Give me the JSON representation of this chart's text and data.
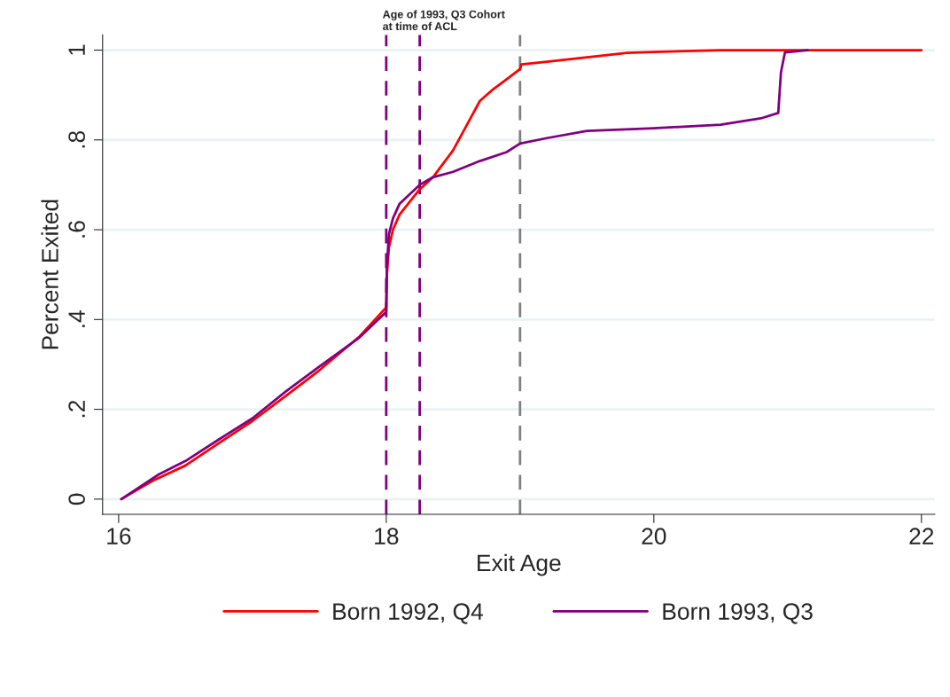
{
  "chart_data": {
    "type": "line",
    "xlabel": "Exit Age",
    "ylabel": "Percent Exited",
    "xlim": [
      15.88,
      22.1
    ],
    "ylim": [
      -0.034,
      1.034
    ],
    "xticks": [
      16,
      18,
      20,
      22
    ],
    "yticks": [
      0,
      {
        "value": 0.2,
        "label": ".2"
      },
      {
        "value": 0.4,
        "label": ".4"
      },
      {
        "value": 0.6,
        "label": ".6"
      },
      {
        "value": 0.8,
        "label": ".8"
      },
      1
    ],
    "grid": "y",
    "legend": "bottom",
    "marker": "none",
    "line_style": "solid",
    "series": [
      {
        "name": "Born 1992, Q4",
        "color": "#ff0000",
        "x": [
          16.02,
          16.25,
          16.5,
          16.75,
          17,
          17.25,
          17.5,
          17.8,
          18,
          18.005,
          18.02,
          18.05,
          18.1,
          18.25,
          18.35,
          18.4,
          18.5,
          18.6,
          18.7,
          18.8,
          18.9,
          19.0,
          19.01,
          19.2,
          19.5,
          19.8,
          20,
          20.5,
          22
        ],
        "values": [
          0,
          0.04,
          0.075,
          0.125,
          0.174,
          0.23,
          0.287,
          0.362,
          0.427,
          0.5,
          0.56,
          0.6,
          0.634,
          0.69,
          0.717,
          0.737,
          0.777,
          0.832,
          0.887,
          0.913,
          0.935,
          0.958,
          0.968,
          0.974,
          0.984,
          0.994,
          0.996,
          1.0,
          1.0
        ]
      },
      {
        "name": "Born 1993, Q3",
        "color": "#800080",
        "x": [
          16.02,
          16.3,
          16.5,
          16.75,
          17,
          17.25,
          17.5,
          17.8,
          18,
          18.005,
          18.02,
          18.05,
          18.1,
          18.25,
          18.35,
          18.5,
          18.7,
          18.9,
          19.0,
          19.2,
          19.5,
          20,
          20.5,
          20.8,
          20.93,
          20.95,
          20.98,
          21.15
        ],
        "values": [
          0,
          0.055,
          0.085,
          0.133,
          0.18,
          0.24,
          0.295,
          0.36,
          0.417,
          0.52,
          0.59,
          0.625,
          0.658,
          0.7,
          0.717,
          0.729,
          0.753,
          0.773,
          0.792,
          0.804,
          0.82,
          0.826,
          0.834,
          0.848,
          0.86,
          0.95,
          0.995,
          1.0
        ]
      }
    ],
    "ref_lines": [
      {
        "axis": "x",
        "value": 18,
        "color": "#800080",
        "line_style": "dashed"
      },
      {
        "axis": "x",
        "value": 18.25,
        "color": "#800080",
        "line_style": "dashed"
      },
      {
        "axis": "x",
        "value": 19,
        "color": "#808080",
        "line_style": "dashed"
      }
    ],
    "annotations": [
      {
        "text": "Age of 1993, Q3 Cohort\nat time of ACL",
        "x": 18,
        "y": 1.034
      }
    ]
  }
}
